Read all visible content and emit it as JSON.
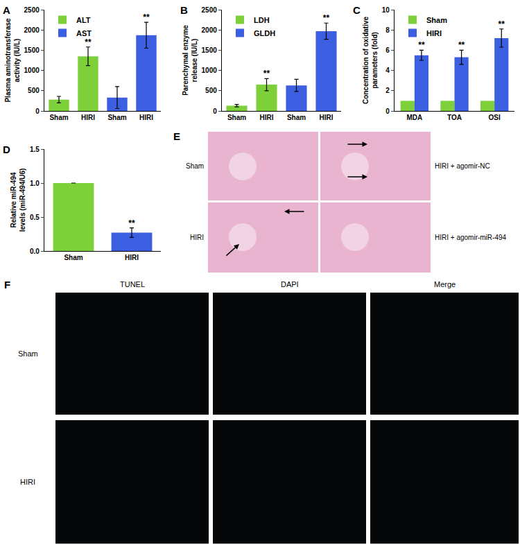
{
  "chart_data": [
    {
      "type": "bar",
      "title": "A",
      "y_label": "Plasma aminotransferase activity (IU/L)",
      "categories": [
        "Sham",
        "HIRI",
        "Sham",
        "HIRI"
      ],
      "series": [
        {
          "name": "ALT",
          "color": "#7ed03b",
          "values": [
            280,
            1350,
            null,
            null
          ],
          "errors": [
            80,
            230,
            null,
            null
          ],
          "significance": [
            null,
            "**",
            null,
            null
          ]
        },
        {
          "name": "AST",
          "color": "#3c5ee0",
          "values": [
            null,
            null,
            330,
            1870
          ],
          "errors": [
            null,
            null,
            270,
            320
          ],
          "significance": [
            null,
            null,
            null,
            "**"
          ]
        }
      ],
      "ylim": [
        0,
        2500
      ],
      "yticks": [
        0,
        500,
        1000,
        1500,
        2000,
        2500
      ],
      "legend": "top left"
    },
    {
      "type": "bar",
      "title": "B",
      "y_label": "Parenchymal enzyme release (IU/L)",
      "categories": [
        "Sham",
        "HIRI",
        "Sham",
        "HIRI"
      ],
      "series": [
        {
          "name": "LDH",
          "color": "#7ed03b",
          "values": [
            130,
            650,
            null,
            null
          ],
          "errors": [
            30,
            150,
            null,
            null
          ],
          "significance": [
            null,
            "**",
            null,
            null
          ]
        },
        {
          "name": "GLDH",
          "color": "#3c5ee0",
          "values": [
            null,
            null,
            630,
            1970
          ],
          "errors": [
            null,
            null,
            150,
            200
          ],
          "significance": [
            null,
            null,
            null,
            "**"
          ]
        }
      ],
      "ylim": [
        0,
        2500
      ],
      "yticks": [
        0,
        500,
        1000,
        1500,
        2000,
        2500
      ],
      "legend": "top left"
    },
    {
      "type": "bar",
      "title": "C",
      "y_label": "Concentration of oxidative parameters (fold)",
      "categories": [
        "MDA",
        "TOA",
        "OSI"
      ],
      "series": [
        {
          "name": "Sham",
          "color": "#7ed03b",
          "values": [
            1,
            1,
            1
          ]
        },
        {
          "name": "HIRI",
          "color": "#3c5ee0",
          "values": [
            5.5,
            5.3,
            7.2
          ],
          "errors": [
            0.5,
            0.7,
            0.9
          ],
          "significance": [
            "**",
            "**",
            "**"
          ]
        }
      ],
      "ylim": [
        0,
        10
      ],
      "yticks": [
        0,
        2,
        4,
        6,
        8,
        10
      ],
      "legend": "top left"
    },
    {
      "type": "bar",
      "title": "D",
      "y_label": "Relative miR-494 levels (miR-494/U6)",
      "categories": [
        "Sham",
        "HIRI"
      ],
      "values": [
        1.0,
        0.27
      ],
      "errors": [
        null,
        0.07
      ],
      "significance": [
        null,
        "**"
      ],
      "colors": [
        "#7ed03b",
        "#3c5ee0"
      ],
      "ylim": [
        0,
        1.5
      ],
      "yticks": [
        {
          "value": 0,
          "label": "0.0"
        },
        {
          "value": 0.5,
          "label": "0.5"
        },
        {
          "value": 1.0,
          "label": "1.0"
        },
        {
          "value": 1.5,
          "label": "1.5"
        }
      ]
    }
  ],
  "image_panels": [
    {
      "title": "E",
      "images": [
        {
          "label": "Sham"
        },
        {
          "label": "HIRI + agomir-NC"
        },
        {
          "label": "HIRI"
        },
        {
          "label": "HIRI + agomir-miR-494"
        }
      ]
    },
    {
      "title": "F",
      "columns": [
        "TUNEL",
        "DAPI",
        "Merge"
      ],
      "rows": [
        "Sham",
        "HIRI"
      ]
    }
  ]
}
